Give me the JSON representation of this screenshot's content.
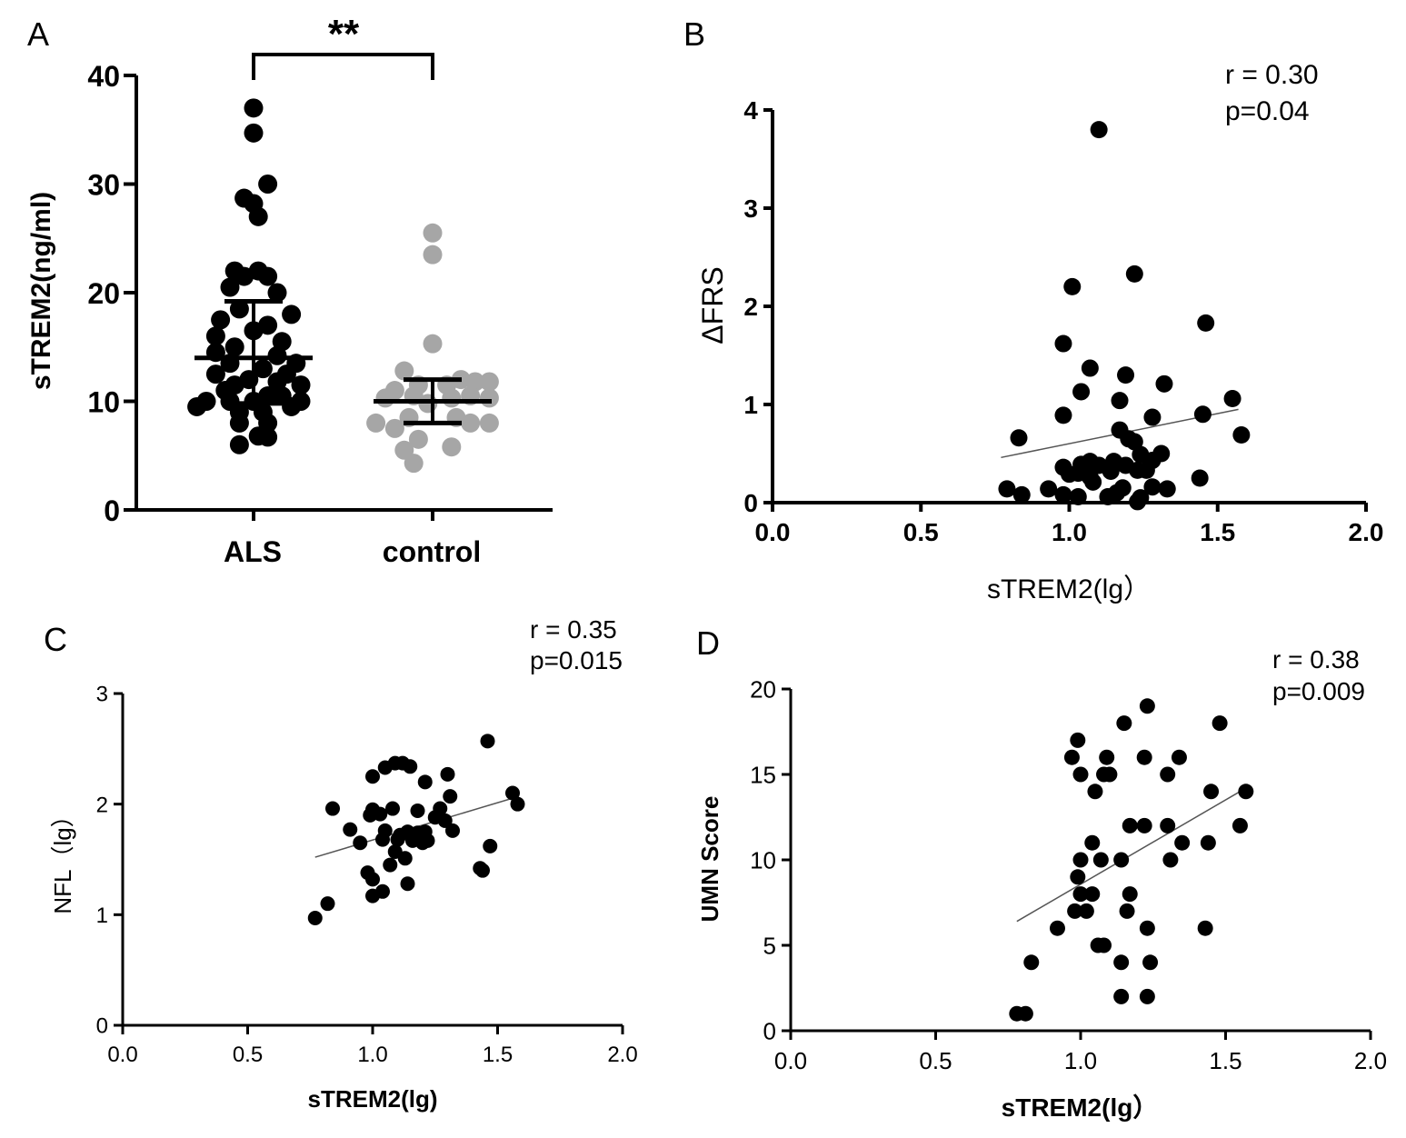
{
  "chart_data": [
    {
      "panel": "A",
      "type": "scatter",
      "ylabel": "sTREM2(ng/ml)",
      "ylim": [
        0,
        40
      ],
      "yticks": [
        0,
        10,
        20,
        30,
        40
      ],
      "categories": [
        "ALS",
        "control"
      ],
      "significance": "**",
      "series": [
        {
          "name": "ALS",
          "color": "#000000",
          "mean": 14,
          "sd_low": 9.8,
          "sd_high": 19.2,
          "points": [
            {
              "o": 0.0,
              "y": 37.0
            },
            {
              "o": 0.0,
              "y": 34.7
            },
            {
              "o": 0.3,
              "y": 30.0
            },
            {
              "o": -0.2,
              "y": 28.7
            },
            {
              "o": 0.0,
              "y": 28.2
            },
            {
              "o": 0.1,
              "y": 27.0
            },
            {
              "o": -0.4,
              "y": 22.0
            },
            {
              "o": 0.1,
              "y": 22.0
            },
            {
              "o": -0.2,
              "y": 21.5
            },
            {
              "o": 0.3,
              "y": 21.5
            },
            {
              "o": -0.5,
              "y": 20.5
            },
            {
              "o": 0.5,
              "y": 20.0
            },
            {
              "o": -0.3,
              "y": 18.5
            },
            {
              "o": 0.8,
              "y": 18.0
            },
            {
              "o": -0.7,
              "y": 17.5
            },
            {
              "o": 0.3,
              "y": 17.0
            },
            {
              "o": -0.8,
              "y": 16.0
            },
            {
              "o": 0.0,
              "y": 16.5
            },
            {
              "o": 0.6,
              "y": 15.5
            },
            {
              "o": -0.4,
              "y": 15.0
            },
            {
              "o": -0.8,
              "y": 14.5
            },
            {
              "o": 0.5,
              "y": 14.2
            },
            {
              "o": 0.9,
              "y": 13.5
            },
            {
              "o": -0.5,
              "y": 13.5
            },
            {
              "o": 0.2,
              "y": 13.0
            },
            {
              "o": -0.8,
              "y": 12.5
            },
            {
              "o": 0.7,
              "y": 12.5
            },
            {
              "o": -0.1,
              "y": 12.0
            },
            {
              "o": 0.5,
              "y": 11.8
            },
            {
              "o": -0.4,
              "y": 11.5
            },
            {
              "o": 1.0,
              "y": 11.5
            },
            {
              "o": -0.6,
              "y": 11.0
            },
            {
              "o": 0.3,
              "y": 10.5
            },
            {
              "o": 0.6,
              "y": 10.5
            },
            {
              "o": -1.0,
              "y": 10.0
            },
            {
              "o": 1.0,
              "y": 10.0
            },
            {
              "o": -0.5,
              "y": 10.0
            },
            {
              "o": 0.0,
              "y": 10.0
            },
            {
              "o": -1.2,
              "y": 9.5
            },
            {
              "o": 0.8,
              "y": 9.5
            },
            {
              "o": -0.3,
              "y": 9.0
            },
            {
              "o": 0.2,
              "y": 9.0
            },
            {
              "o": -0.3,
              "y": 8.0
            },
            {
              "o": 0.3,
              "y": 8.0
            },
            {
              "o": 0.1,
              "y": 6.8
            },
            {
              "o": 0.3,
              "y": 6.7
            },
            {
              "o": -0.3,
              "y": 6.0
            }
          ]
        },
        {
          "name": "control",
          "color": "#a6a6a6",
          "mean": 10,
          "sd_low": 8.0,
          "sd_high": 12.0,
          "points": [
            {
              "o": 0.0,
              "y": 25.5
            },
            {
              "o": 0.0,
              "y": 23.5
            },
            {
              "o": 0.0,
              "y": 15.3
            },
            {
              "o": -0.6,
              "y": 12.8
            },
            {
              "o": 0.6,
              "y": 12.0
            },
            {
              "o": 0.9,
              "y": 11.8
            },
            {
              "o": 1.2,
              "y": 11.8
            },
            {
              "o": -0.3,
              "y": 11.5
            },
            {
              "o": 0.3,
              "y": 11.5
            },
            {
              "o": -0.8,
              "y": 11.0
            },
            {
              "o": -1.0,
              "y": 10.3
            },
            {
              "o": -0.4,
              "y": 10.5
            },
            {
              "o": 0.4,
              "y": 10.3
            },
            {
              "o": 0.8,
              "y": 10.5
            },
            {
              "o": 1.2,
              "y": 10.3
            },
            {
              "o": -0.1,
              "y": 9.8
            },
            {
              "o": -1.2,
              "y": 8.0
            },
            {
              "o": 1.2,
              "y": 8.0
            },
            {
              "o": -0.5,
              "y": 8.5
            },
            {
              "o": 0.5,
              "y": 8.5
            },
            {
              "o": 0.8,
              "y": 8.0
            },
            {
              "o": -0.8,
              "y": 7.5
            },
            {
              "o": -0.3,
              "y": 6.5
            },
            {
              "o": 0.4,
              "y": 5.8
            },
            {
              "o": -0.6,
              "y": 5.5
            },
            {
              "o": -0.4,
              "y": 4.3
            }
          ]
        }
      ]
    },
    {
      "panel": "B",
      "type": "scatter",
      "xlabel": "sTREM2(lg）",
      "ylabel": "ΔFRS",
      "xlim": [
        0,
        2
      ],
      "ylim": [
        0,
        4
      ],
      "xticks": [
        "0.0",
        "0.5",
        "1.0",
        "1.5",
        "2.0"
      ],
      "yticks": [
        "0",
        "1",
        "2",
        "3",
        "4"
      ],
      "stats": {
        "r": "r = 0.30",
        "p": "p=0.04"
      },
      "fit": {
        "x": [
          0.77,
          1.57
        ],
        "y": [
          0.46,
          0.95
        ]
      },
      "x": [
        1.1,
        1.22,
        1.01,
        1.46,
        0.98,
        1.07,
        1.19,
        1.32,
        1.04,
        1.17,
        1.55,
        0.98,
        1.28,
        1.45,
        0.83,
        1.2,
        1.58,
        1.17,
        1.22,
        1.24,
        1.31,
        1.28,
        1.07,
        1.15,
        1.04,
        0.98,
        1.1,
        1.19,
        1.26,
        1.14,
        1.0,
        1.03,
        1.23,
        1.07,
        0.93,
        1.08,
        1.18,
        1.33,
        1.44,
        0.79,
        0.84,
        0.98,
        1.03,
        1.13,
        1.24,
        1.16,
        1.23,
        1.28
      ],
      "y": [
        3.8,
        2.33,
        2.2,
        1.83,
        1.62,
        1.37,
        1.3,
        1.21,
        1.13,
        1.04,
        1.06,
        0.89,
        0.87,
        0.9,
        0.66,
        0.65,
        0.69,
        0.74,
        0.62,
        0.49,
        0.5,
        0.43,
        0.42,
        0.42,
        0.39,
        0.36,
        0.38,
        0.38,
        0.33,
        0.32,
        0.29,
        0.3,
        0.33,
        0.26,
        0.14,
        0.21,
        0.15,
        0.14,
        0.25,
        0.14,
        0.08,
        0.08,
        0.06,
        0.06,
        0.05,
        0.1,
        0.01,
        0.16
      ]
    },
    {
      "panel": "C",
      "type": "scatter",
      "xlabel": "sTREM2(lg)",
      "ylabel": "NFL（lg）",
      "xlim": [
        0,
        2
      ],
      "ylim": [
        0,
        3
      ],
      "xticks": [
        "0.0",
        "0.5",
        "1.0",
        "1.5",
        "2.0"
      ],
      "yticks": [
        "0",
        "1",
        "2",
        "3"
      ],
      "stats": {
        "r": "r = 0.35",
        "p": "p=0.015"
      },
      "fit": {
        "x": [
          0.77,
          1.57
        ],
        "y": [
          1.52,
          2.06
        ]
      },
      "x": [
        1.46,
        1.09,
        1.12,
        1.15,
        1.05,
        1.0,
        1.3,
        1.21,
        1.56,
        0.84,
        1.31,
        1.58,
        1.08,
        1.0,
        1.27,
        1.18,
        1.03,
        0.99,
        1.25,
        0.91,
        1.29,
        1.32,
        1.14,
        1.05,
        1.21,
        1.11,
        0.95,
        1.18,
        1.1,
        1.2,
        1.04,
        1.16,
        1.47,
        1.22,
        1.09,
        1.13,
        0.98,
        1.07,
        1.43,
        1.0,
        1.44,
        1.14,
        1.0,
        1.04,
        0.82,
        0.77
      ],
      "y": [
        2.57,
        2.37,
        2.37,
        2.34,
        2.33,
        2.25,
        2.27,
        2.2,
        2.1,
        1.96,
        2.07,
        2.0,
        1.96,
        1.95,
        1.96,
        1.94,
        1.91,
        1.9,
        1.88,
        1.77,
        1.85,
        1.76,
        1.75,
        1.76,
        1.75,
        1.72,
        1.65,
        1.74,
        1.68,
        1.65,
        1.68,
        1.67,
        1.62,
        1.67,
        1.57,
        1.51,
        1.38,
        1.45,
        1.42,
        1.32,
        1.4,
        1.28,
        1.17,
        1.21,
        1.1,
        0.97
      ]
    },
    {
      "panel": "D",
      "type": "scatter",
      "xlabel": "sTREM2(lg）",
      "ylabel": "UMN Score",
      "xlim": [
        0,
        2
      ],
      "ylim": [
        0,
        20
      ],
      "xticks": [
        "0.0",
        "0.5",
        "1.0",
        "1.5",
        "2.0"
      ],
      "yticks": [
        "0",
        "5",
        "10",
        "15",
        "20"
      ],
      "stats": {
        "r": "r = 0.38",
        "p": "p=0.009"
      },
      "fit": {
        "x": [
          0.78,
          1.57
        ],
        "y": [
          6.4,
          14.2
        ]
      },
      "x": [
        1.23,
        1.15,
        1.48,
        0.99,
        0.97,
        1.09,
        1.22,
        1.34,
        1.0,
        1.08,
        1.3,
        1.05,
        1.1,
        1.45,
        1.57,
        1.04,
        1.17,
        1.22,
        1.3,
        1.55,
        1.35,
        1.44,
        1.0,
        1.07,
        1.14,
        1.31,
        0.99,
        1.04,
        1.0,
        1.17,
        0.98,
        1.02,
        1.16,
        0.92,
        1.23,
        1.43,
        1.06,
        1.08,
        0.83,
        1.14,
        1.24,
        1.14,
        1.23,
        0.78,
        0.81
      ],
      "y": [
        19,
        18,
        18,
        17,
        16,
        16,
        16,
        16,
        15,
        15,
        15,
        14,
        15,
        14,
        14,
        11,
        12,
        12,
        12,
        12,
        11,
        11,
        10,
        10,
        10,
        10,
        9,
        8,
        8,
        8,
        7,
        7,
        7,
        6,
        6,
        6,
        5,
        5,
        4,
        4,
        4,
        2,
        2,
        1,
        1
      ]
    }
  ],
  "panel_labels": [
    "A",
    "B",
    "C",
    "D"
  ]
}
